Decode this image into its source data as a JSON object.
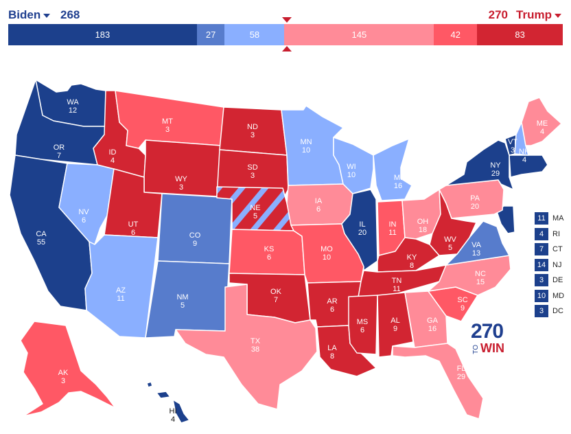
{
  "header": {
    "biden_label": "Biden",
    "biden_total": "268",
    "trump_label": "Trump",
    "trump_total": "270"
  },
  "colors": {
    "safe_dem": "#1c408c",
    "likely_dem": "#577ccc",
    "lean_dem": "#8aafff",
    "lean_rep": "#ff8b98",
    "likely_rep": "#ff5865",
    "safe_rep": "#d22532"
  },
  "bar": [
    {
      "id": "safe-dem",
      "value": 183,
      "label": "183",
      "color": "#1c408c"
    },
    {
      "id": "likely-dem",
      "value": 27,
      "label": "27",
      "color": "#577ccc"
    },
    {
      "id": "lean-dem",
      "value": 58,
      "label": "58",
      "color": "#8aafff"
    },
    {
      "id": "lean-rep",
      "value": 145,
      "label": "145",
      "color": "#ff8b98"
    },
    {
      "id": "likely-rep",
      "value": 42,
      "label": "42",
      "color": "#ff5865"
    },
    {
      "id": "safe-rep",
      "value": 83,
      "label": "83",
      "color": "#d22532"
    }
  ],
  "states": [
    {
      "abbr": "WA",
      "votes": "12",
      "rating": "safe_dem"
    },
    {
      "abbr": "OR",
      "votes": "7",
      "rating": "safe_dem"
    },
    {
      "abbr": "CA",
      "votes": "55",
      "rating": "safe_dem"
    },
    {
      "abbr": "NV",
      "votes": "6",
      "rating": "lean_dem"
    },
    {
      "abbr": "ID",
      "votes": "4",
      "rating": "safe_rep"
    },
    {
      "abbr": "MT",
      "votes": "3",
      "rating": "likely_rep"
    },
    {
      "abbr": "WY",
      "votes": "3",
      "rating": "safe_rep"
    },
    {
      "abbr": "UT",
      "votes": "6",
      "rating": "safe_rep"
    },
    {
      "abbr": "AZ",
      "votes": "11",
      "rating": "lean_dem"
    },
    {
      "abbr": "CO",
      "votes": "9",
      "rating": "likely_dem"
    },
    {
      "abbr": "NM",
      "votes": "5",
      "rating": "likely_dem"
    },
    {
      "abbr": "ND",
      "votes": "3",
      "rating": "safe_rep"
    },
    {
      "abbr": "SD",
      "votes": "3",
      "rating": "safe_rep"
    },
    {
      "abbr": "NE",
      "votes": "5",
      "rating": "safe_rep"
    },
    {
      "abbr": "KS",
      "votes": "6",
      "rating": "likely_rep"
    },
    {
      "abbr": "OK",
      "votes": "7",
      "rating": "safe_rep"
    },
    {
      "abbr": "TX",
      "votes": "38",
      "rating": "lean_rep"
    },
    {
      "abbr": "MN",
      "votes": "10",
      "rating": "lean_dem"
    },
    {
      "abbr": "IA",
      "votes": "6",
      "rating": "lean_rep"
    },
    {
      "abbr": "MO",
      "votes": "10",
      "rating": "likely_rep"
    },
    {
      "abbr": "AR",
      "votes": "6",
      "rating": "safe_rep"
    },
    {
      "abbr": "LA",
      "votes": "8",
      "rating": "safe_rep"
    },
    {
      "abbr": "WI",
      "votes": "10",
      "rating": "lean_dem"
    },
    {
      "abbr": "IL",
      "votes": "20",
      "rating": "safe_dem"
    },
    {
      "abbr": "MI",
      "votes": "16",
      "rating": "lean_dem"
    },
    {
      "abbr": "IN",
      "votes": "11",
      "rating": "likely_rep"
    },
    {
      "abbr": "OH",
      "votes": "18",
      "rating": "lean_rep"
    },
    {
      "abbr": "KY",
      "votes": "8",
      "rating": "safe_rep"
    },
    {
      "abbr": "TN",
      "votes": "11",
      "rating": "safe_rep"
    },
    {
      "abbr": "MS",
      "votes": "6",
      "rating": "safe_rep"
    },
    {
      "abbr": "AL",
      "votes": "9",
      "rating": "safe_rep"
    },
    {
      "abbr": "GA",
      "votes": "16",
      "rating": "lean_rep"
    },
    {
      "abbr": "FL",
      "votes": "29",
      "rating": "lean_rep"
    },
    {
      "abbr": "SC",
      "votes": "9",
      "rating": "likely_rep"
    },
    {
      "abbr": "NC",
      "votes": "15",
      "rating": "lean_rep"
    },
    {
      "abbr": "VA",
      "votes": "13",
      "rating": "likely_dem"
    },
    {
      "abbr": "WV",
      "votes": "5",
      "rating": "safe_rep"
    },
    {
      "abbr": "PA",
      "votes": "20",
      "rating": "lean_rep"
    },
    {
      "abbr": "NY",
      "votes": "29",
      "rating": "safe_dem"
    },
    {
      "abbr": "VT",
      "votes": "3",
      "rating": "safe_dem"
    },
    {
      "abbr": "NH",
      "votes": "4",
      "rating": "lean_dem"
    },
    {
      "abbr": "ME",
      "votes": "4",
      "rating": "lean_rep"
    },
    {
      "abbr": "AK",
      "votes": "3",
      "rating": "likely_rep"
    },
    {
      "abbr": "HI",
      "votes": "4",
      "rating": "safe_dem"
    }
  ],
  "small_states": [
    {
      "abbr": "MA",
      "votes": "11"
    },
    {
      "abbr": "RI",
      "votes": "4"
    },
    {
      "abbr": "CT",
      "votes": "7"
    },
    {
      "abbr": "NJ",
      "votes": "14"
    },
    {
      "abbr": "DE",
      "votes": "3"
    },
    {
      "abbr": "MD",
      "votes": "10"
    },
    {
      "abbr": "DC",
      "votes": "3"
    }
  ],
  "logo": {
    "number": "270",
    "to": "TO",
    "win": "WIN"
  }
}
